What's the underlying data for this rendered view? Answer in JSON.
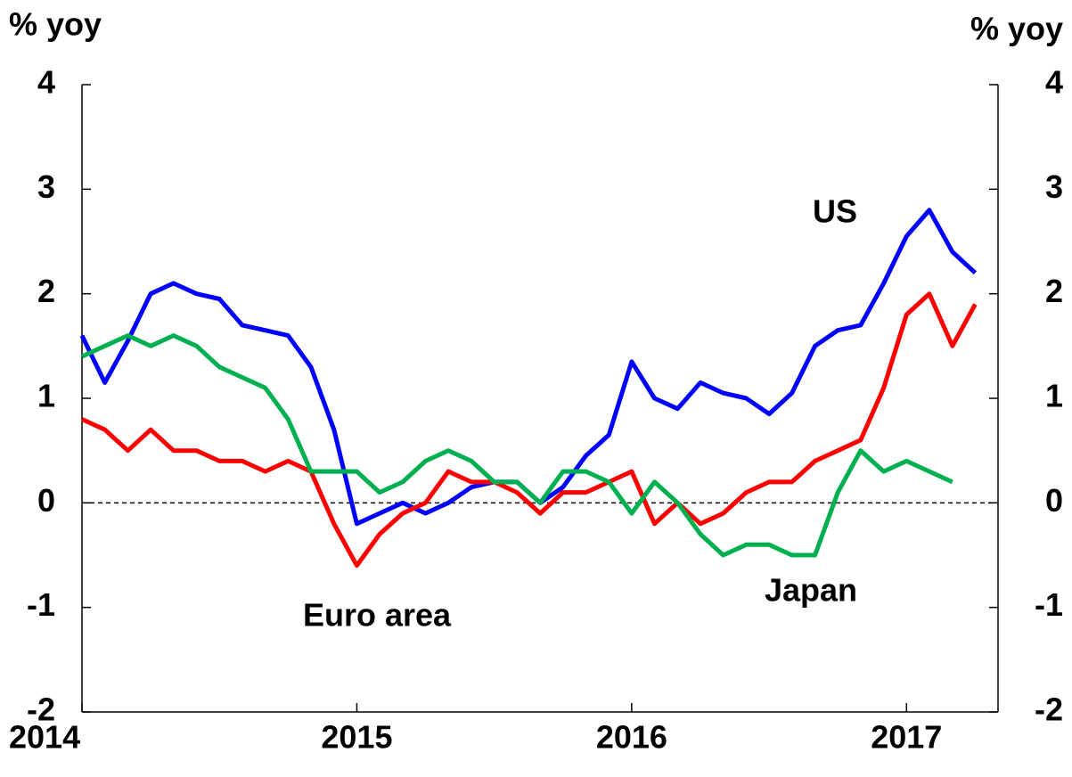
{
  "chart_data": {
    "type": "line",
    "ylabel": "% yoy",
    "y2label": "% yoy",
    "x": [
      2014,
      2014.083,
      2014.167,
      2014.25,
      2014.333,
      2014.417,
      2014.5,
      2014.583,
      2014.667,
      2014.75,
      2014.833,
      2014.917,
      2015,
      2015.083,
      2015.167,
      2015.25,
      2015.333,
      2015.417,
      2015.5,
      2015.583,
      2015.667,
      2015.75,
      2015.833,
      2015.917,
      2016,
      2016.083,
      2016.167,
      2016.25,
      2016.333,
      2016.417,
      2016.5,
      2016.583,
      2016.667,
      2016.75,
      2016.833,
      2016.917,
      2017,
      2017.083,
      2017.167,
      2017.25
    ],
    "series": [
      {
        "name": "US",
        "color": "#0000ff",
        "values": [
          1.6,
          1.15,
          1.55,
          2.0,
          2.1,
          2.0,
          1.95,
          1.7,
          1.65,
          1.6,
          1.3,
          0.7,
          -0.2,
          -0.1,
          0.0,
          -0.1,
          0.0,
          0.15,
          0.2,
          0.2,
          0.0,
          0.15,
          0.45,
          0.65,
          1.35,
          1.0,
          0.9,
          1.15,
          1.05,
          1.0,
          0.85,
          1.05,
          1.5,
          1.65,
          1.7,
          2.1,
          2.55,
          2.8,
          2.4,
          2.2
        ]
      },
      {
        "name": "Euro area",
        "color": "#ff0000",
        "values": [
          0.8,
          0.7,
          0.5,
          0.7,
          0.5,
          0.5,
          0.4,
          0.4,
          0.3,
          0.4,
          0.3,
          -0.2,
          -0.6,
          -0.3,
          -0.1,
          0.0,
          0.3,
          0.2,
          0.2,
          0.1,
          -0.1,
          0.1,
          0.1,
          0.2,
          0.3,
          -0.2,
          0.0,
          -0.2,
          -0.1,
          0.1,
          0.2,
          0.2,
          0.4,
          0.5,
          0.6,
          1.1,
          1.8,
          2.0,
          1.5,
          1.9
        ]
      },
      {
        "name": "Japan",
        "color": "#00b050",
        "values": [
          1.4,
          1.5,
          1.6,
          1.5,
          1.6,
          1.5,
          1.3,
          1.2,
          1.1,
          0.8,
          0.3,
          0.3,
          0.3,
          0.1,
          0.2,
          0.4,
          0.5,
          0.4,
          0.2,
          0.2,
          0.0,
          0.3,
          0.3,
          0.2,
          -0.1,
          0.2,
          0.0,
          -0.3,
          -0.5,
          -0.4,
          -0.4,
          -0.5,
          -0.5,
          0.1,
          0.5,
          0.3,
          0.4,
          0.3,
          0.2,
          null
        ]
      }
    ],
    "xlim": [
      2014,
      2017.333
    ],
    "xticks": [
      2014,
      2015,
      2016,
      2017
    ],
    "ylim": [
      -2,
      4
    ],
    "yticks": [
      -2,
      -1,
      0,
      1,
      2,
      3,
      4
    ],
    "y2lim": [
      -2,
      4
    ],
    "y2ticks": [
      -2,
      -1,
      0,
      1,
      2,
      3,
      4
    ],
    "zero_line": true
  }
}
